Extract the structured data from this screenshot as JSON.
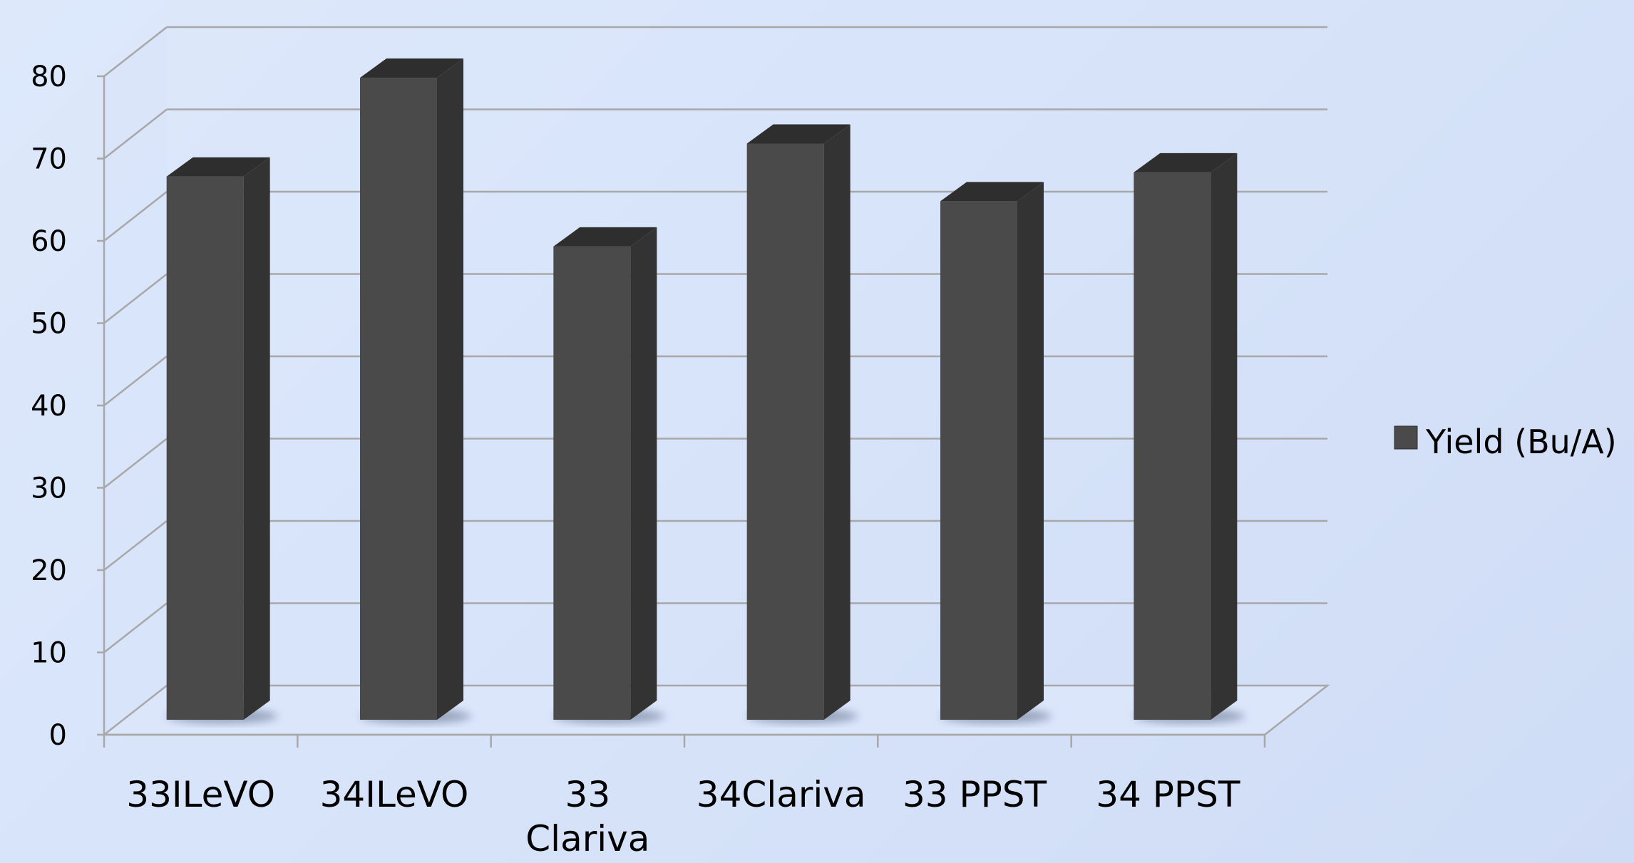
{
  "chart_data": {
    "type": "bar",
    "categories": [
      "33ILeVO",
      "34ILeVO",
      "33\nClariva",
      "34Clariva",
      "33 PPST",
      "34 PPST"
    ],
    "series": [
      {
        "name": "Yield (Bu/A)",
        "values": [
          66,
          78,
          57.5,
          70,
          63,
          66.5
        ],
        "color": "#4a4a4a"
      }
    ],
    "ylim": [
      0,
      80
    ],
    "yticks": [
      0,
      10,
      20,
      30,
      40,
      50,
      60,
      70,
      80
    ],
    "grid": true,
    "legend_position": "right",
    "style": "3d-column"
  }
}
